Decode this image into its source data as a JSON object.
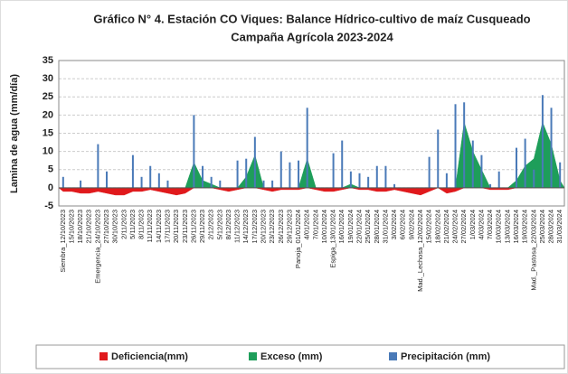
{
  "chart_data": {
    "type": "water-balance",
    "title": "Gráfico N° 4. Estación CO Viques: Balance Hídrico-cultivo de maíz Cusqueado",
    "subtitle": "Campaña Agrícola 2023-2024",
    "y_label": "Lamina de agua (mm/día)",
    "categories": [
      "Siembra_12/10/2023",
      "15/10/2023",
      "18/10/2023",
      "21/10/2023",
      "Emergencia_24/10/2023",
      "27/10/2023",
      "30/10/2023",
      "2/11/2023",
      "5/11/2023",
      "8/11/2023",
      "11/11/2023",
      "14/11/2023",
      "17/11/2023",
      "20/11/2023",
      "23/11/2023",
      "26/11/2023",
      "29/11/2023",
      "2/12/2023",
      "5/12/2023",
      "8/12/2023",
      "11/12/2023",
      "14/12/2023",
      "17/12/2023",
      "20/12/2023",
      "23/12/2023",
      "26/12/2023",
      "29/12/2023",
      "Panoja_01/01/2024",
      "4/01/2024",
      "7/01/2024",
      "10/01/2024",
      "Espiga_13/01/2024",
      "16/01/2024",
      "19/01/2024",
      "22/01/2024",
      "25/01/2024",
      "28/01/2024",
      "31/01/2024",
      "3/02/2024",
      "6/02/2024",
      "9/02/2024",
      "Mad._Lechosa_12/02/2024",
      "15/02/2024",
      "18/02/2024",
      "21/02/2024",
      "24/02/2024",
      "27/02/2024",
      "1/03/2024",
      "4/03/2024",
      "7/03/2024",
      "10/03/2024",
      "13/03/2024",
      "16/03/2024",
      "19/03/2024",
      "Mad._Pastosa_22/03/2024",
      "25/03/2024",
      "28/03/2024",
      "31/03/2024"
    ],
    "series": [
      {
        "name": "Deficiencia(mm)",
        "color": "#e0191c",
        "kind": "area",
        "values": [
          -1,
          -1,
          -1.5,
          -1.5,
          -1,
          -1.5,
          -2,
          -2,
          -1,
          -1,
          -0.5,
          -1,
          -1.5,
          -2,
          -1.5,
          0,
          0,
          0,
          -0.5,
          -1,
          -0.5,
          0,
          0,
          -0.5,
          -1,
          -0.5,
          -0.5,
          -0.5,
          0,
          -0.5,
          -1,
          -1,
          -0.5,
          0,
          -0.5,
          -0.5,
          -1,
          -1,
          -0.5,
          -1,
          -1.5,
          -2,
          -1,
          0,
          -1.5,
          -1,
          0,
          0,
          0,
          -0.5,
          -0.5,
          -0.5,
          0,
          0,
          0,
          0,
          0,
          0
        ]
      },
      {
        "name": "Exceso (mm)",
        "color": "#1e9e5a",
        "kind": "area",
        "values": [
          0,
          0,
          0,
          0,
          0,
          0,
          0,
          0,
          0,
          0,
          0,
          0,
          0,
          0,
          0,
          7,
          2,
          1,
          0,
          0,
          0,
          3,
          9,
          0,
          0,
          0,
          0,
          0,
          8,
          0,
          0,
          0,
          0,
          1,
          0,
          0,
          0,
          0,
          0,
          0,
          0,
          0,
          0,
          0,
          0,
          0,
          18,
          10,
          5,
          0,
          0,
          0,
          2,
          6,
          8,
          18,
          12,
          2
        ]
      },
      {
        "name": "Precipitación (mm)",
        "color": "#4a7ab8",
        "kind": "bar",
        "values": [
          3,
          0,
          2,
          0,
          12,
          4.5,
          0,
          0,
          9,
          3,
          6,
          4,
          2,
          0,
          0,
          20,
          6,
          3,
          2,
          0,
          7.5,
          8,
          14,
          2,
          2,
          10,
          7,
          7.5,
          22,
          0,
          0,
          9.5,
          13,
          4.5,
          4,
          3,
          6,
          6,
          1,
          0,
          0,
          0,
          8.5,
          16,
          4,
          23,
          23.5,
          13,
          9,
          1,
          4.5,
          0,
          11,
          13.5,
          5,
          25.5,
          22,
          7
        ]
      }
    ],
    "ylim": [
      -5,
      35
    ],
    "yticks": [
      -5,
      0,
      5,
      10,
      15,
      20,
      25,
      30,
      35
    ],
    "grid": true
  }
}
